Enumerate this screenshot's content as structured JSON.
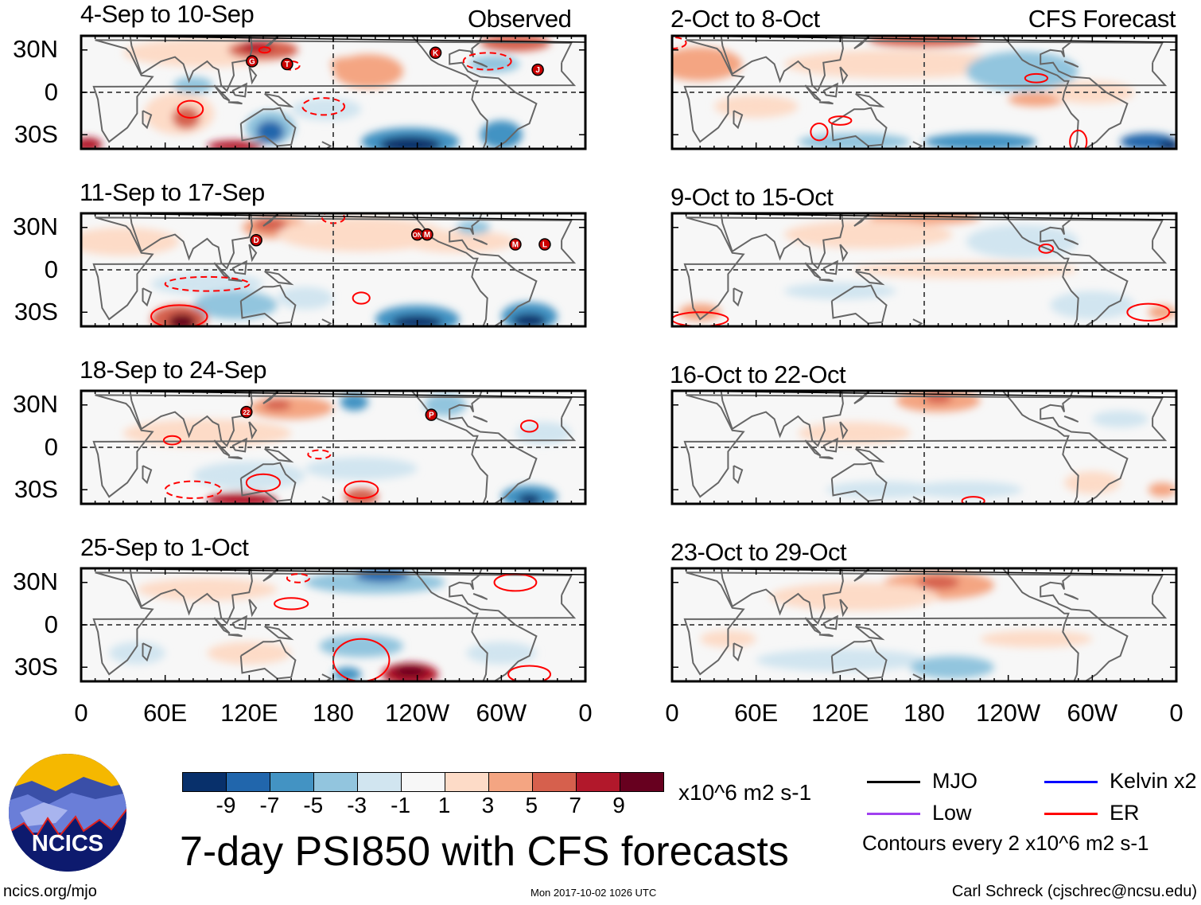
{
  "header": {
    "observed_label": "Observed",
    "forecast_label": "CFS Forecast"
  },
  "panels": {
    "observed": [
      {
        "title": "4-Sep to 10-Sep",
        "storms": [
          "G",
          "T",
          "K",
          "J"
        ]
      },
      {
        "title": "11-Sep to 17-Sep",
        "storms": [
          "D",
          "ON",
          "M",
          "M",
          "L"
        ]
      },
      {
        "title": "18-Sep to 24-Sep",
        "storms": [
          "22",
          "P"
        ]
      },
      {
        "title": "25-Sep to 1-Oct",
        "storms": []
      }
    ],
    "forecast": [
      {
        "title": "2-Oct to 8-Oct"
      },
      {
        "title": "9-Oct to 15-Oct"
      },
      {
        "title": "16-Oct to 22-Oct"
      },
      {
        "title": "23-Oct to 29-Oct"
      }
    ]
  },
  "axes": {
    "y_ticks": [
      "30N",
      "0",
      "30S"
    ],
    "x_ticks": [
      "0",
      "60E",
      "120E",
      "180",
      "120W",
      "60W",
      "0"
    ]
  },
  "colorbar": {
    "colors": [
      "#08306b",
      "#2166ac",
      "#4393c3",
      "#92c5de",
      "#d1e5f0",
      "#f7f7f7",
      "#fddbc7",
      "#f4a582",
      "#d6604d",
      "#b2182b",
      "#67001f"
    ],
    "labels": [
      "-9",
      "-7",
      "-5",
      "-3",
      "-1",
      "1",
      "3",
      "5",
      "7",
      "9"
    ],
    "units": "x10^6 m2 s-1"
  },
  "legend": {
    "items": [
      {
        "label": "MJO",
        "color": "#000000"
      },
      {
        "label": "Kelvin x2",
        "color": "#0000ff"
      },
      {
        "label": "Low",
        "color": "#a040f0"
      },
      {
        "label": "ER",
        "color": "#ff0000"
      }
    ],
    "contour_note": "Contours every 2 x10^6 m2 s-1"
  },
  "title": "7-day PSI850 with CFS forecasts",
  "logo": {
    "text": "NCICS"
  },
  "footer": {
    "url": "ncics.org/mjo",
    "timestamp": "Mon 2017-10-02 1026 UTC",
    "author": "Carl Schreck (cjschrec@ncsu.edu)"
  }
}
